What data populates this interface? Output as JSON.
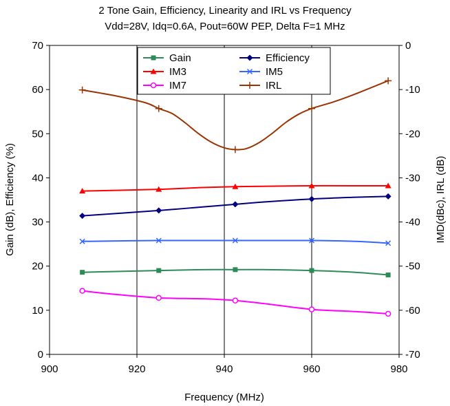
{
  "chart_data": {
    "type": "line",
    "title": "2 Tone Gain, Efficiency, Linearity and IRL vs Frequency",
    "subtitle": "Vdd=28V, Idq=0.6A, Pout=60W PEP, Delta F=1 MHz",
    "xlabel": "Frequency (MHz)",
    "ylabel": "Gain (dB), Efficiency (%)",
    "y2label": "IMD(dBc), IRL (dB)",
    "xlim": [
      900,
      980
    ],
    "ylim": [
      0,
      70
    ],
    "y2lim": [
      -70,
      0
    ],
    "xticks": [
      "900",
      "920",
      "940",
      "960",
      "980"
    ],
    "yticks": [
      "0",
      "10",
      "20",
      "30",
      "40",
      "50",
      "60",
      "70"
    ],
    "y2ticks": [
      "-70",
      "-60",
      "-50",
      "-40",
      "-30",
      "-20",
      "-10",
      "0"
    ],
    "grid": "vertical",
    "legend_position": "top-center",
    "series": [
      {
        "name": "Gain",
        "axis": "left",
        "color": "#2e8b57",
        "marker": "square",
        "x": [
          907.5,
          925,
          942.5,
          960,
          977.5
        ],
        "y": [
          18.6,
          19.0,
          19.2,
          19.0,
          18.0
        ],
        "curve_x": [
          907.5,
          925,
          935,
          942.5,
          950,
          960,
          970,
          977.5
        ],
        "curve_y": [
          18.6,
          19.0,
          19.2,
          19.2,
          19.2,
          19.0,
          18.6,
          18.0
        ]
      },
      {
        "name": "Efficiency",
        "axis": "left",
        "color": "#00007f",
        "marker": "diamond",
        "x": [
          907.5,
          925,
          942.5,
          960,
          977.5
        ],
        "y": [
          31.4,
          32.6,
          34.0,
          35.2,
          35.8
        ],
        "curve_x": [
          907.5,
          925,
          935,
          942.5,
          950,
          960,
          970,
          977.5
        ],
        "curve_y": [
          31.4,
          32.6,
          33.4,
          34.0,
          34.6,
          35.2,
          35.6,
          35.8
        ]
      },
      {
        "name": "IM3",
        "axis": "right",
        "color": "#ff0000",
        "marker": "triangle",
        "x": [
          907.5,
          925,
          942.5,
          960,
          977.5
        ],
        "y": [
          -33.0,
          -32.6,
          -32.0,
          -31.8,
          -31.8
        ],
        "curve_x": [
          907.5,
          925,
          935,
          942.5,
          950,
          960,
          970,
          977.5
        ],
        "curve_y": [
          -33.0,
          -32.6,
          -32.2,
          -32.0,
          -31.9,
          -31.8,
          -31.8,
          -31.8
        ]
      },
      {
        "name": "IM5",
        "axis": "right",
        "color": "#3366ff",
        "marker": "x",
        "x": [
          907.5,
          925,
          942.5,
          960,
          977.5
        ],
        "y": [
          -44.4,
          -44.2,
          -44.2,
          -44.2,
          -44.8
        ],
        "curve_x": [
          907.5,
          925,
          942.5,
          960,
          970,
          977.5
        ],
        "curve_y": [
          -44.4,
          -44.2,
          -44.2,
          -44.2,
          -44.4,
          -44.8
        ]
      },
      {
        "name": "IM7",
        "axis": "right",
        "color": "#ff00ff",
        "marker": "circle",
        "x": [
          907.5,
          925,
          942.5,
          960,
          977.5
        ],
        "y": [
          -55.6,
          -57.2,
          -57.8,
          -59.8,
          -60.8
        ],
        "curve_x": [
          907.5,
          915,
          925,
          935,
          942.5,
          950,
          960,
          970,
          977.5
        ],
        "curve_y": [
          -55.6,
          -56.4,
          -57.2,
          -57.4,
          -57.8,
          -58.6,
          -59.8,
          -60.3,
          -60.8
        ]
      },
      {
        "name": "IRL",
        "axis": "right",
        "color": "#993300",
        "marker": "plus",
        "x": [
          907.5,
          925,
          942.5,
          960,
          977.5
        ],
        "y": [
          -10.1,
          -14.3,
          -23.6,
          -14.3,
          -8.0
        ],
        "curve_x": [
          907.5,
          915,
          922,
          925,
          928,
          931,
          934,
          937,
          940,
          942.5,
          945,
          948,
          951,
          954,
          957,
          960,
          965,
          970,
          977.5
        ],
        "curve_y": [
          -10.1,
          -11.4,
          -13.0,
          -14.3,
          -15.4,
          -17.5,
          -19.9,
          -21.9,
          -23.2,
          -23.6,
          -23.4,
          -22.0,
          -19.9,
          -17.5,
          -15.6,
          -14.3,
          -12.8,
          -11.0,
          -8.0
        ]
      }
    ]
  }
}
